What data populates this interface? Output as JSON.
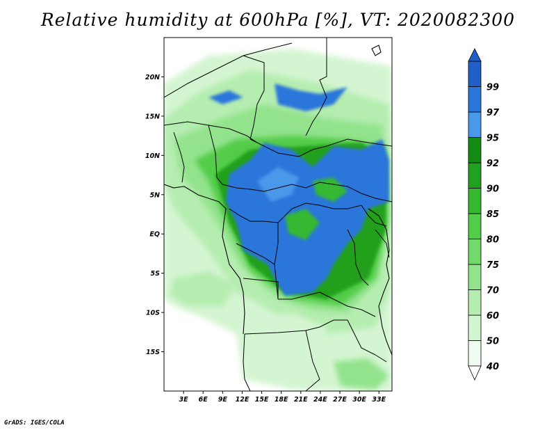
{
  "title": "Relative humidity at 600hPa [%], VT: 2020082300",
  "credit": "GrADS: IGES/COLA",
  "map": {
    "lon_range": [
      0,
      35
    ],
    "lat_range": [
      -20,
      25
    ],
    "lat_ticks": [
      {
        "value": 20,
        "label": "20N"
      },
      {
        "value": 15,
        "label": "15N"
      },
      {
        "value": 10,
        "label": "10N"
      },
      {
        "value": 5,
        "label": "5N"
      },
      {
        "value": 0,
        "label": "EQ"
      },
      {
        "value": -5,
        "label": "5S"
      },
      {
        "value": -10,
        "label": "10S"
      },
      {
        "value": -15,
        "label": "15S"
      }
    ],
    "lon_ticks": [
      {
        "value": 3,
        "label": "3E"
      },
      {
        "value": 6,
        "label": "6E"
      },
      {
        "value": 9,
        "label": "9E"
      },
      {
        "value": 12,
        "label": "12E"
      },
      {
        "value": 15,
        "label": "15E"
      },
      {
        "value": 18,
        "label": "18E"
      },
      {
        "value": 21,
        "label": "21E"
      },
      {
        "value": 24,
        "label": "24E"
      },
      {
        "value": 27,
        "label": "27E"
      },
      {
        "value": 30,
        "label": "30E"
      },
      {
        "value": 33,
        "label": "33E"
      }
    ]
  },
  "colorbar": {
    "levels": [
      "40",
      "50",
      "60",
      "70",
      "75",
      "80",
      "85",
      "90",
      "92",
      "95",
      "97",
      "99"
    ],
    "colors": [
      "#f0fcf0",
      "#d4f5d1",
      "#b5edb0",
      "#93e38d",
      "#72d96a",
      "#52cc4a",
      "#36b831",
      "#22a01f",
      "#138a14",
      "#4a98ea",
      "#2b76da",
      "#1f5fc6"
    ]
  },
  "colors": {
    "ocean": "#ffffff",
    "border": "#000000"
  }
}
